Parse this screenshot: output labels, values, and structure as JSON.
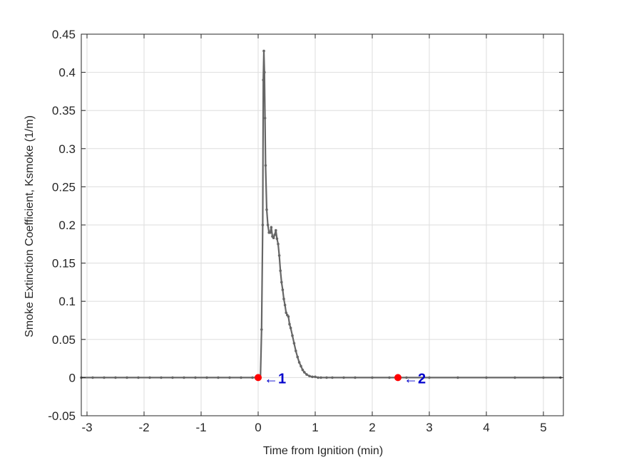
{
  "chart_data": {
    "type": "line",
    "title": "",
    "xlabel": "Time from Ignition (min)",
    "ylabel": "Smoke Extinction Coefficient, Ksmoke (1/m)",
    "xlim": [
      -3.1,
      5.35
    ],
    "ylim": [
      -0.05,
      0.45
    ],
    "xticks": [
      -3,
      -2,
      -1,
      0,
      1,
      2,
      3,
      4,
      5
    ],
    "xtick_labels": [
      "-3",
      "-2",
      "-1",
      "0",
      "1",
      "2",
      "3",
      "4",
      "5"
    ],
    "yticks": [
      -0.05,
      0,
      0.05,
      0.1,
      0.15,
      0.2,
      0.25,
      0.3,
      0.35,
      0.4,
      0.45
    ],
    "ytick_labels": [
      "-0.05",
      "0",
      "0.05",
      "0.1",
      "0.15",
      "0.2",
      "0.25",
      "0.3",
      "0.35",
      "0.4",
      "0.45"
    ],
    "grid": true,
    "colors": {
      "line": "#666666",
      "marker_point": "#ff0000",
      "marker_label": "#0000cc",
      "grid": "#dddddd",
      "axis": "#262626"
    },
    "series": [
      {
        "x": [
          -3.1,
          -2.9,
          -2.7,
          -2.5,
          -2.3,
          -2.1,
          -1.9,
          -1.7,
          -1.5,
          -1.3,
          -1.1,
          -0.9,
          -0.7,
          -0.5,
          -0.3,
          -0.1,
          0.0,
          0.04,
          0.06,
          0.08,
          0.09,
          0.1,
          0.11,
          0.12,
          0.13,
          0.15,
          0.17,
          0.19,
          0.21,
          0.23,
          0.25,
          0.27,
          0.29,
          0.31,
          0.33,
          0.35,
          0.37,
          0.39,
          0.41,
          0.43,
          0.45,
          0.47,
          0.49,
          0.51,
          0.53,
          0.55,
          0.57,
          0.6,
          0.63,
          0.66,
          0.69,
          0.72,
          0.75,
          0.78,
          0.81,
          0.85,
          0.9,
          0.95,
          1.0,
          1.05,
          1.1,
          1.2,
          1.3,
          1.5,
          1.7,
          2.0,
          2.3,
          2.6,
          3.0,
          3.5,
          4.0,
          4.5,
          5.0,
          5.3
        ],
        "y": [
          0.0,
          0.0,
          0.0,
          0.0,
          0.0,
          0.0,
          0.0,
          0.0,
          0.0,
          0.0,
          0.0,
          0.0,
          0.0,
          0.0,
          0.0,
          0.0,
          0.0,
          0.0,
          0.063,
          0.2,
          0.39,
          0.428,
          0.4,
          0.34,
          0.278,
          0.22,
          0.2,
          0.19,
          0.19,
          0.197,
          0.185,
          0.183,
          0.187,
          0.193,
          0.182,
          0.175,
          0.16,
          0.14,
          0.125,
          0.115,
          0.103,
          0.095,
          0.085,
          0.082,
          0.08,
          0.07,
          0.065,
          0.055,
          0.045,
          0.035,
          0.027,
          0.02,
          0.015,
          0.01,
          0.007,
          0.004,
          0.002,
          0.001,
          0.001,
          0.0,
          0.0,
          0.0,
          0.0,
          0.0,
          0.0,
          0.0,
          0.0,
          0.0,
          0.0,
          0.0,
          0.0,
          0.0,
          0.0,
          0.0
        ]
      }
    ],
    "markers": [
      {
        "x": 0.0,
        "y": 0.0,
        "label": "←1"
      },
      {
        "x": 2.45,
        "y": 0.0,
        "label": "←2"
      }
    ]
  }
}
